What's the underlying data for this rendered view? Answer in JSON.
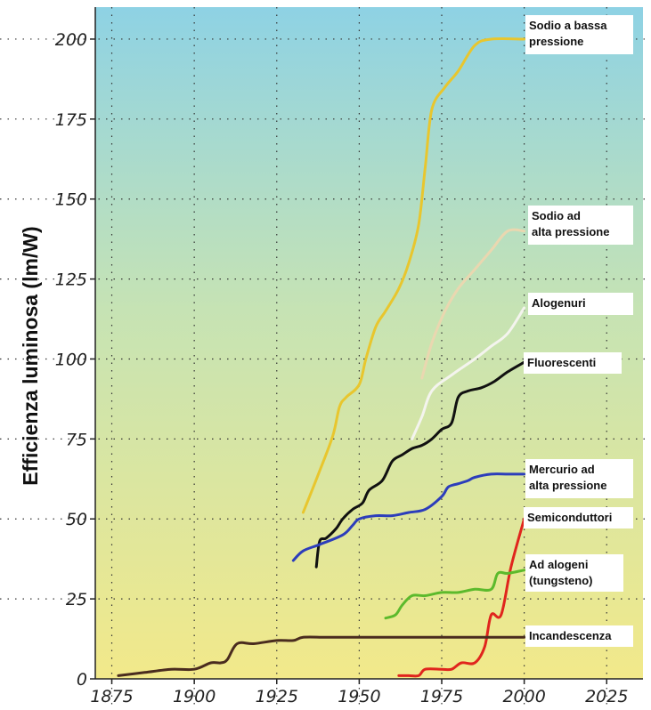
{
  "chart_data": {
    "type": "line",
    "title": "",
    "xlabel": "",
    "ylabel": "Efficienza luminosa (lm/W)",
    "xlim": [
      1870,
      2036
    ],
    "ylim": [
      0,
      210
    ],
    "x_ticks": [
      1875,
      1900,
      1925,
      1950,
      1975,
      2000,
      2025
    ],
    "x_tick_labels": [
      "1875",
      "1900",
      "1925",
      "1950",
      "1975",
      "2000",
      "2025"
    ],
    "y_ticks": [
      0,
      25,
      50,
      75,
      100,
      125,
      150,
      175,
      200
    ],
    "y_tick_labels": [
      "0",
      "25",
      "50",
      "75",
      "100",
      "125",
      "150",
      "175",
      "200"
    ],
    "grid": true,
    "background": "gradient: light blue (top) to light yellow (bottom)",
    "series": [
      {
        "name": "Sodio a bassa pressione",
        "color": "#e8c62e",
        "x": [
          1933,
          1938,
          1942,
          1944,
          1946,
          1950,
          1952,
          1955,
          1958,
          1962,
          1965,
          1968,
          1970,
          1972,
          1976,
          1980,
          1985,
          1990,
          2000
        ],
        "y": [
          52,
          65,
          76,
          85,
          88,
          92,
          100,
          110,
          115,
          122,
          130,
          142,
          160,
          178,
          185,
          190,
          198,
          200,
          200
        ]
      },
      {
        "name": "Sodio ad alta pressione",
        "color": "#ead7b0",
        "x": [
          1969,
          1972,
          1976,
          1980,
          1985,
          1990,
          1995,
          2000
        ],
        "y": [
          94,
          105,
          115,
          122,
          128,
          134,
          140,
          140
        ]
      },
      {
        "name": "Alogenuri",
        "color": "#f4f4ee",
        "x": [
          1966,
          1969,
          1972,
          1978,
          1985,
          1990,
          1995,
          2000
        ],
        "y": [
          75,
          82,
          90,
          95,
          100,
          104,
          108,
          116
        ]
      },
      {
        "name": "Fluorescenti",
        "color": "#111111",
        "x": [
          1937,
          1938,
          1940,
          1943,
          1945,
          1948,
          1951,
          1953,
          1957,
          1960,
          1963,
          1966,
          1969,
          1972,
          1975,
          1978,
          1980,
          1983,
          1987,
          1991,
          1995,
          2000
        ],
        "y": [
          35,
          43,
          44,
          47,
          50,
          53,
          55,
          59,
          62,
          68,
          70,
          72,
          73,
          75,
          78,
          80,
          88,
          90,
          91,
          93,
          96,
          99
        ]
      },
      {
        "name": "Mercurio ad alta pressione",
        "color": "#2c3dbb",
        "x": [
          1930,
          1933,
          1938,
          1945,
          1948,
          1950,
          1955,
          1960,
          1965,
          1970,
          1975,
          1977,
          1980,
          1983,
          1985,
          1990,
          1995,
          2000
        ],
        "y": [
          37,
          40,
          42,
          45,
          48,
          50,
          51,
          51,
          52,
          53,
          57,
          60,
          61,
          62,
          63,
          64,
          64,
          64
        ]
      },
      {
        "name": "Semiconduttori",
        "color": "#e0251d",
        "x": [
          1962,
          1965,
          1968,
          1970,
          1975,
          1978,
          1981,
          1985,
          1988,
          1990,
          1993,
          1996,
          2000
        ],
        "y": [
          1,
          1,
          1,
          3,
          3,
          3,
          5,
          5,
          10,
          20,
          20,
          35,
          50
        ]
      },
      {
        "name": "Ad alogeni (tungsteno)",
        "color": "#5cba2c",
        "x": [
          1958,
          1961,
          1963,
          1966,
          1970,
          1975,
          1980,
          1985,
          1990,
          1992,
          1995,
          2000
        ],
        "y": [
          19,
          20,
          23,
          26,
          26,
          27,
          27,
          28,
          28,
          33,
          33,
          34
        ]
      },
      {
        "name": "Incandescenza",
        "color": "#4a2c1f",
        "x": [
          1877,
          1885,
          1893,
          1900,
          1905,
          1908,
          1910,
          1913,
          1918,
          1925,
          1930,
          1933,
          1940,
          1950,
          1975,
          2000
        ],
        "y": [
          1,
          2,
          3,
          3,
          5,
          5,
          6,
          11,
          11,
          12,
          12,
          13,
          13,
          13,
          13,
          13
        ]
      }
    ],
    "label_lines": {
      "Sodio a bassa pressione": [
        "Sodio a bassa",
        "pressione"
      ],
      "Sodio ad alta pressione": [
        "Sodio ad",
        "alta pressione"
      ],
      "Alogenuri": [
        "Alogenuri"
      ],
      "Fluorescenti": [
        "Fluorescenti"
      ],
      "Mercurio ad alta pressione": [
        "Mercurio ad",
        "alta pressione"
      ],
      "Semiconduttori": [
        "Semiconduttori"
      ],
      "Ad alogeni (tungsteno)": [
        "Ad alogeni",
        "(tungsteno)"
      ],
      "Incandescenza": [
        "Incandescenza"
      ]
    }
  }
}
